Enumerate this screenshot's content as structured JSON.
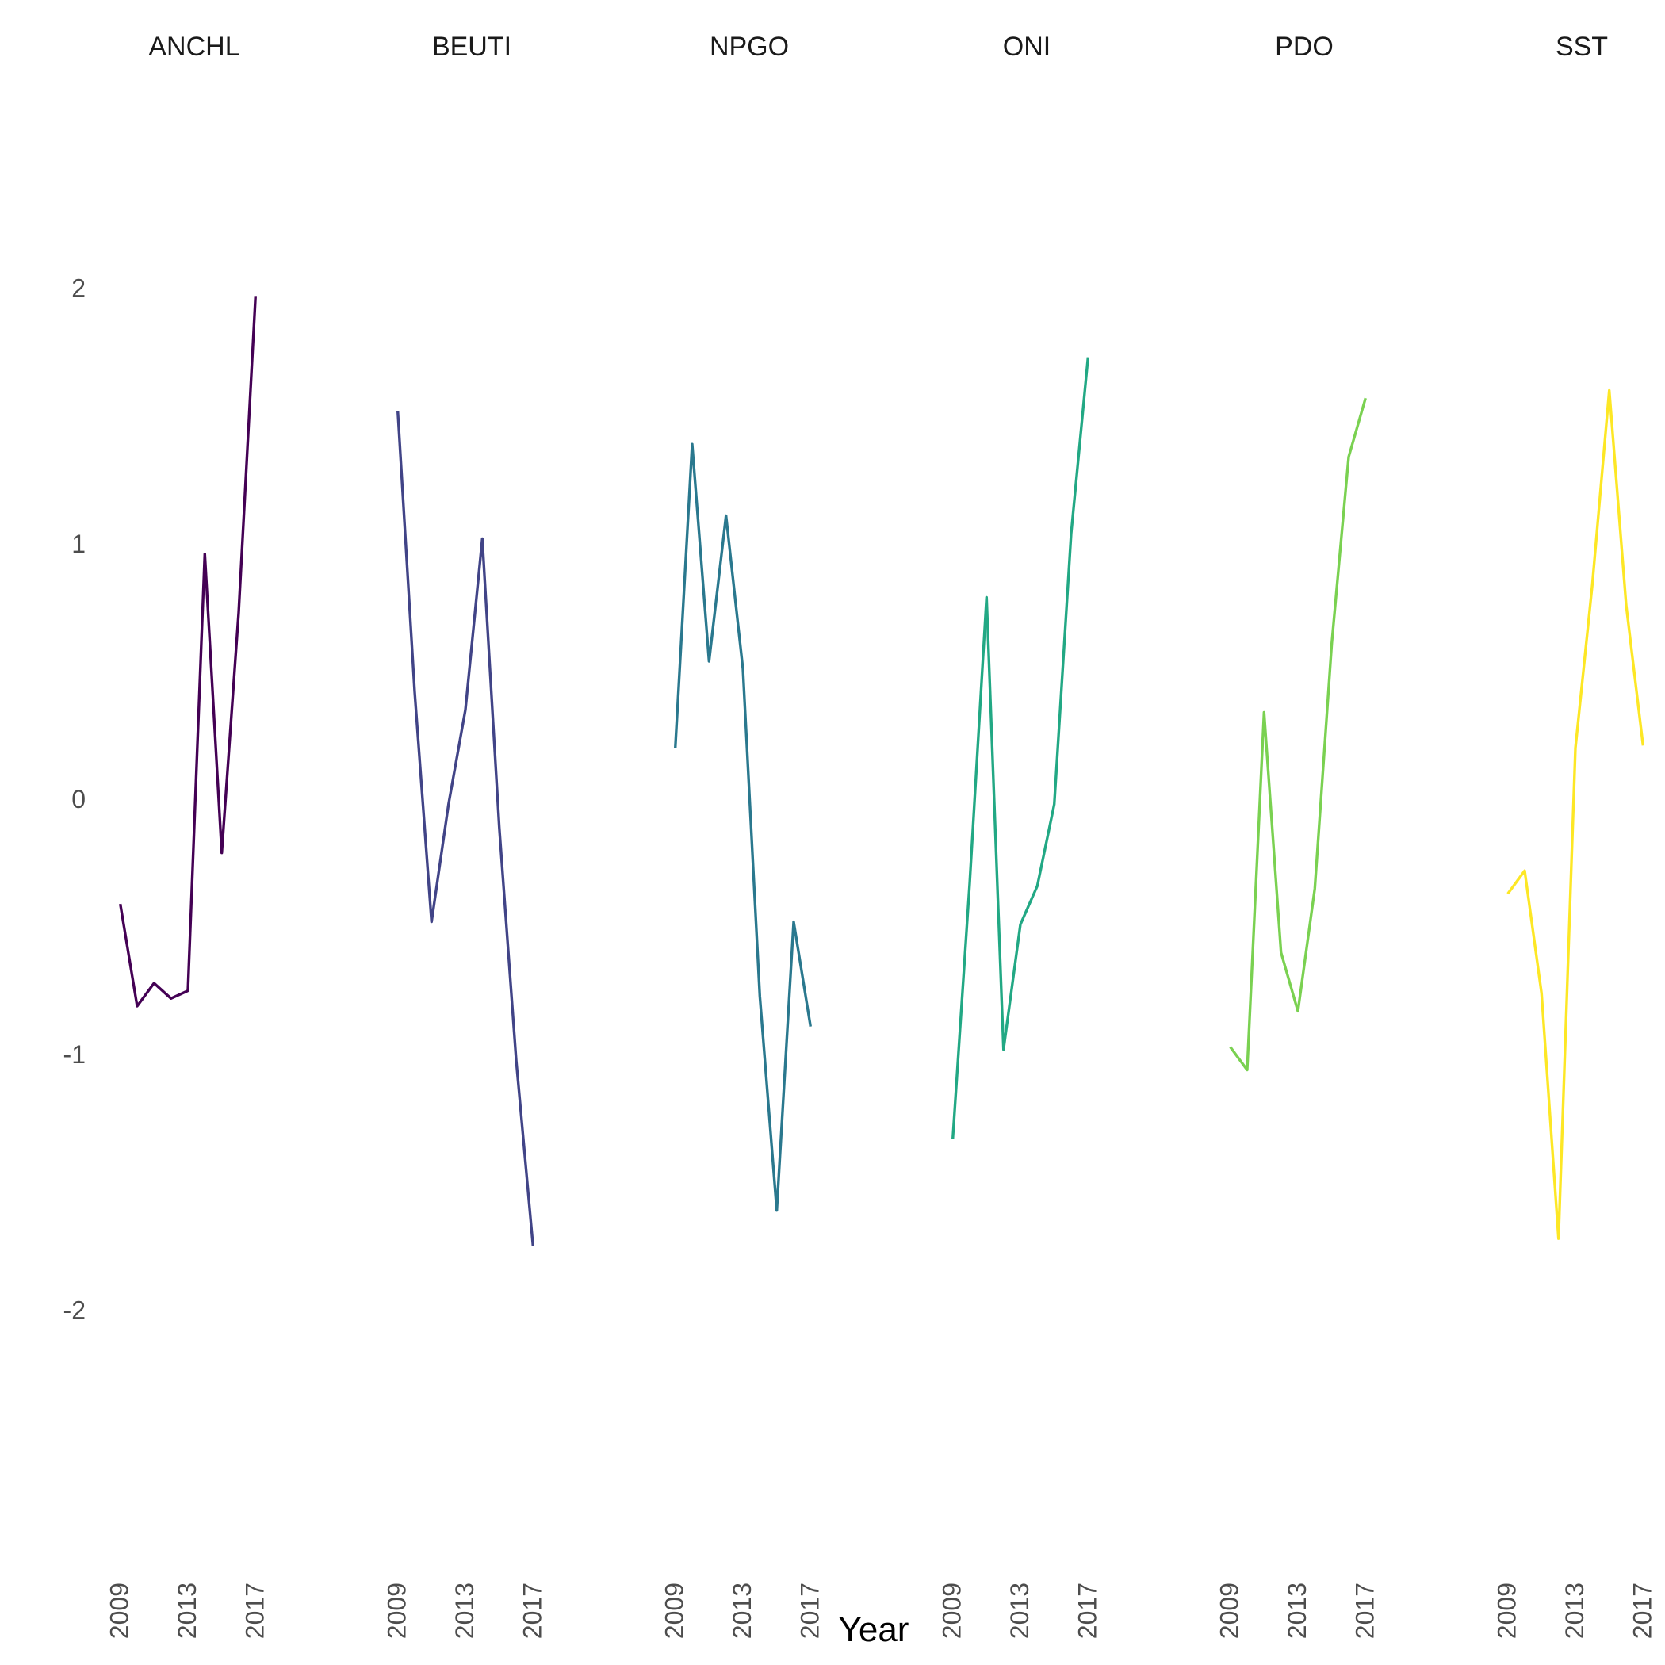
{
  "chart_data": {
    "type": "line",
    "xlabel": "Year",
    "ylabel": "",
    "x_ticks": [
      2009,
      2013,
      2017
    ],
    "x_tick_labels": [
      "2009",
      "2013",
      "2017"
    ],
    "xlim": [
      2008.5,
      2017.5
    ],
    "y_ticks": [
      -2,
      -1,
      0,
      1,
      2
    ],
    "y_tick_labels": [
      "-2",
      "-1",
      "0",
      "1",
      "2"
    ],
    "ylim": [
      -2.75,
      2.75
    ],
    "grid": false,
    "legend": "none",
    "x": [
      2009,
      2010,
      2011,
      2012,
      2013,
      2014,
      2015,
      2016,
      2017
    ],
    "panels": [
      {
        "title": "ANCHL",
        "color": "#440154",
        "values": [
          -0.41,
          -0.81,
          -0.72,
          -0.78,
          -0.75,
          0.96,
          -0.21,
          0.73,
          1.97
        ]
      },
      {
        "title": "BEUTI",
        "color": "#414487",
        "values": [
          1.52,
          0.42,
          -0.48,
          -0.02,
          0.35,
          1.02,
          -0.11,
          -1.02,
          -1.75
        ]
      },
      {
        "title": "NPGO",
        "color": "#2A788E",
        "values": [
          0.2,
          1.39,
          0.54,
          1.11,
          0.51,
          -0.77,
          -1.61,
          -0.48,
          -0.89
        ]
      },
      {
        "title": "ONI",
        "color": "#22A884",
        "values": [
          -1.33,
          -0.33,
          0.79,
          -0.98,
          -0.49,
          -0.34,
          -0.02,
          1.04,
          1.73
        ]
      },
      {
        "title": "PDO",
        "color": "#7AD151",
        "values": [
          -0.97,
          -1.06,
          0.34,
          -0.6,
          -0.83,
          -0.35,
          0.61,
          1.34,
          1.57
        ]
      },
      {
        "title": "SST",
        "color": "#FDE725",
        "values": [
          -0.37,
          -0.28,
          -0.76,
          -1.72,
          0.2,
          0.84,
          1.6,
          0.76,
          0.21
        ]
      }
    ]
  }
}
